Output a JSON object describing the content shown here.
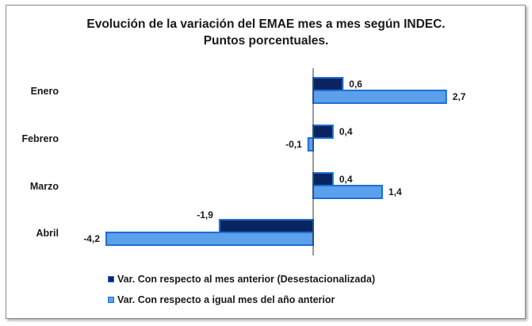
{
  "chart_data": {
    "type": "bar",
    "orientation": "horizontal",
    "title_line1": "Evolución de la variación del EMAE mes a mes según INDEC.",
    "title_line2": "Puntos porcentuales.",
    "categories": [
      "Enero",
      "Febrero",
      "Marzo",
      "Abril"
    ],
    "series": [
      {
        "name": "Var. Con respecto al mes anterior (Desestacionalizada)",
        "values": [
          0.6,
          0.4,
          0.4,
          -1.9
        ],
        "labels": [
          "0,6",
          "0,4",
          "0,4",
          "-1,9"
        ],
        "color": "#0a2461"
      },
      {
        "name": "Var. Con respecto a igual mes del año anterior",
        "values": [
          2.7,
          -0.1,
          1.4,
          -4.2
        ],
        "labels": [
          "2,7",
          "-0,1",
          "1,4",
          "-4,2"
        ],
        "color": "#5aa0ea"
      }
    ],
    "xlim": [
      -4.2,
      2.7
    ],
    "legend_position": "bottom",
    "xlabel": "",
    "ylabel": ""
  },
  "colors": {
    "bar_outline": "#1f6fd6",
    "text": "#1a1a1a"
  }
}
